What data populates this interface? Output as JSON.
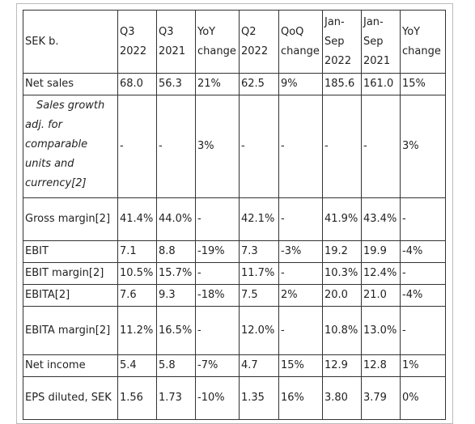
{
  "table": {
    "header": {
      "label": "SEK b.",
      "columns": [
        [
          "Q3",
          "2022"
        ],
        [
          "Q3",
          "2021"
        ],
        [
          "YoY",
          "change"
        ],
        [
          "Q2",
          "2022"
        ],
        [
          "QoQ",
          "change"
        ],
        [
          "Jan-",
          "Sep",
          "2022"
        ],
        [
          "Jan-",
          "Sep",
          "2021"
        ],
        [
          "YoY",
          "change"
        ]
      ]
    },
    "rows": [
      {
        "label": "Net sales",
        "cells": [
          "68.0",
          "56.3",
          "21%",
          "62.5",
          "9%",
          "185.6",
          "161.0",
          "15%"
        ]
      },
      {
        "label": "Sales growth adj. for comparable units and currency[2]",
        "italic": true,
        "cells": [
          "-",
          "-",
          "3%",
          "-",
          "-",
          "-",
          "-",
          "3%"
        ]
      },
      {
        "label": "Gross margin[2]",
        "cells": [
          "41.4%",
          "44.0%",
          "-",
          "42.1%",
          "-",
          "41.9%",
          "43.4%",
          "-"
        ]
      },
      {
        "label": "EBIT",
        "cells": [
          "7.1",
          "8.8",
          "-19%",
          "7.3",
          "-3%",
          "19.2",
          "19.9",
          "-4%"
        ]
      },
      {
        "label": "EBIT margin[2]",
        "cells": [
          "10.5%",
          "15.7%",
          "-",
          "11.7%",
          "-",
          "10.3%",
          "12.4%",
          "-"
        ]
      },
      {
        "label": "EBITA[2]",
        "cells": [
          "7.6",
          "9.3",
          "-18%",
          "7.5",
          "2%",
          "20.0",
          "21.0",
          "-4%"
        ]
      },
      {
        "label": "EBITA margin[2]",
        "cells": [
          "11.2%",
          "16.5%",
          "-",
          "12.0%",
          "-",
          "10.8%",
          "13.0%",
          "-"
        ]
      },
      {
        "label": "Net income",
        "cells": [
          "5.4",
          "5.8",
          "-7%",
          "4.7",
          "15%",
          "12.9",
          "12.8",
          "1%"
        ]
      },
      {
        "label": "EPS diluted, SEK",
        "cells": [
          "1.56",
          "1.73",
          "-10%",
          "1.35",
          "16%",
          "3.80",
          "3.79",
          "0%"
        ]
      }
    ]
  }
}
